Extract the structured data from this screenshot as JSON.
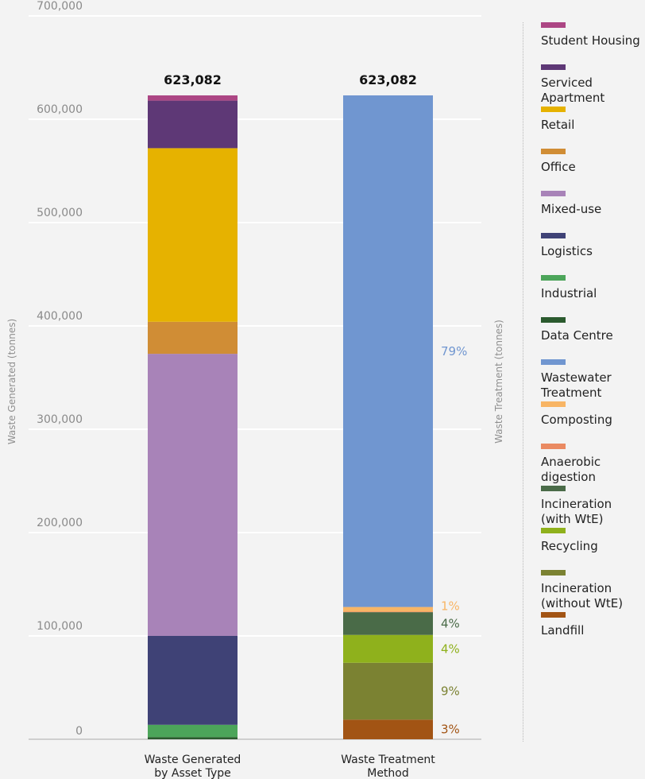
{
  "chart_data": {
    "type": "bar",
    "stacked": true,
    "ylabel_left": "Waste Generated (tonnes)",
    "ylabel_right": "Waste Treatment (tonnes)",
    "ylim": [
      0,
      700000
    ],
    "y_ticks": [
      "0",
      "100,000",
      "200,000",
      "300,000",
      "400,000",
      "500,000",
      "600,000",
      "700,000"
    ],
    "y_tick_values": [
      0,
      100000,
      200000,
      300000,
      400000,
      500000,
      600000,
      700000
    ],
    "grid": true,
    "legend_placement": "right",
    "bars": [
      {
        "category": "Waste Generated by Asset Type",
        "category_lines": [
          "Waste Generated",
          "by Asset Type"
        ],
        "total_label": "623,082",
        "segments": [
          {
            "name": "Data Centre",
            "value": 2000,
            "color": "#2b5a2e"
          },
          {
            "name": "Industrial",
            "value": 12000,
            "color": "#4ca55a"
          },
          {
            "name": "Logistics",
            "value": 86000,
            "color": "#3f4276"
          },
          {
            "name": "Mixed-use",
            "value": 273000,
            "color": "#a883b8"
          },
          {
            "name": "Office",
            "value": 31000,
            "color": "#d08d35"
          },
          {
            "name": "Retail",
            "value": 168000,
            "color": "#e6b200"
          },
          {
            "name": "Serviced Apartment",
            "value": 46000,
            "color": "#5e3876"
          },
          {
            "name": "Student Housing",
            "value": 5082,
            "color": "#ac4684"
          }
        ]
      },
      {
        "category": "Waste Treatment Method",
        "category_lines": [
          "Waste Treatment",
          "Method"
        ],
        "total_label": "623,082",
        "segments": [
          {
            "name": "Landfill",
            "value": 19000,
            "color": "#a25414",
            "label": "3%"
          },
          {
            "name": "Incineration (without WtE)",
            "value": 55000,
            "color": "#7b8232",
            "label": "9%"
          },
          {
            "name": "Recycling",
            "value": 27000,
            "color": "#8fb11c",
            "label": "4%"
          },
          {
            "name": "Incineration (with WtE)",
            "value": 22000,
            "color": "#4a6b48",
            "label": "4%"
          },
          {
            "name": "Anaerobic digestion",
            "value": 500,
            "color": "#ea8a62",
            "label": ""
          },
          {
            "name": "Composting",
            "value": 4500,
            "color": "#f8b565",
            "label": "1%"
          },
          {
            "name": "Wastewater Treatment",
            "value": 495082,
            "color": "#7096d0",
            "label": "79%"
          }
        ]
      }
    ]
  },
  "legend": [
    {
      "label": "Student Housing",
      "color": "#ac4684"
    },
    {
      "label": "Serviced Apartment",
      "color": "#5e3876"
    },
    {
      "label": "Retail",
      "color": "#e6b200"
    },
    {
      "label": "Office",
      "color": "#d08d35"
    },
    {
      "label": "Mixed-use",
      "color": "#a883b8"
    },
    {
      "label": "Logistics",
      "color": "#3f4276"
    },
    {
      "label": "Industrial",
      "color": "#4ca55a"
    },
    {
      "label": "Data Centre",
      "color": "#2b5a2e"
    },
    {
      "label": "Wastewater Treatment",
      "color": "#7096d0"
    },
    {
      "label": "Composting",
      "color": "#f8b565"
    },
    {
      "label": "Anaerobic digestion",
      "color": "#ea8a62"
    },
    {
      "label": "Incineration (with WtE)",
      "color": "#4a6b48"
    },
    {
      "label": "Recycling",
      "color": "#8fb11c"
    },
    {
      "label": "Incineration (without WtE)",
      "color": "#7b8232"
    },
    {
      "label": "Landfill",
      "color": "#a25414"
    }
  ]
}
